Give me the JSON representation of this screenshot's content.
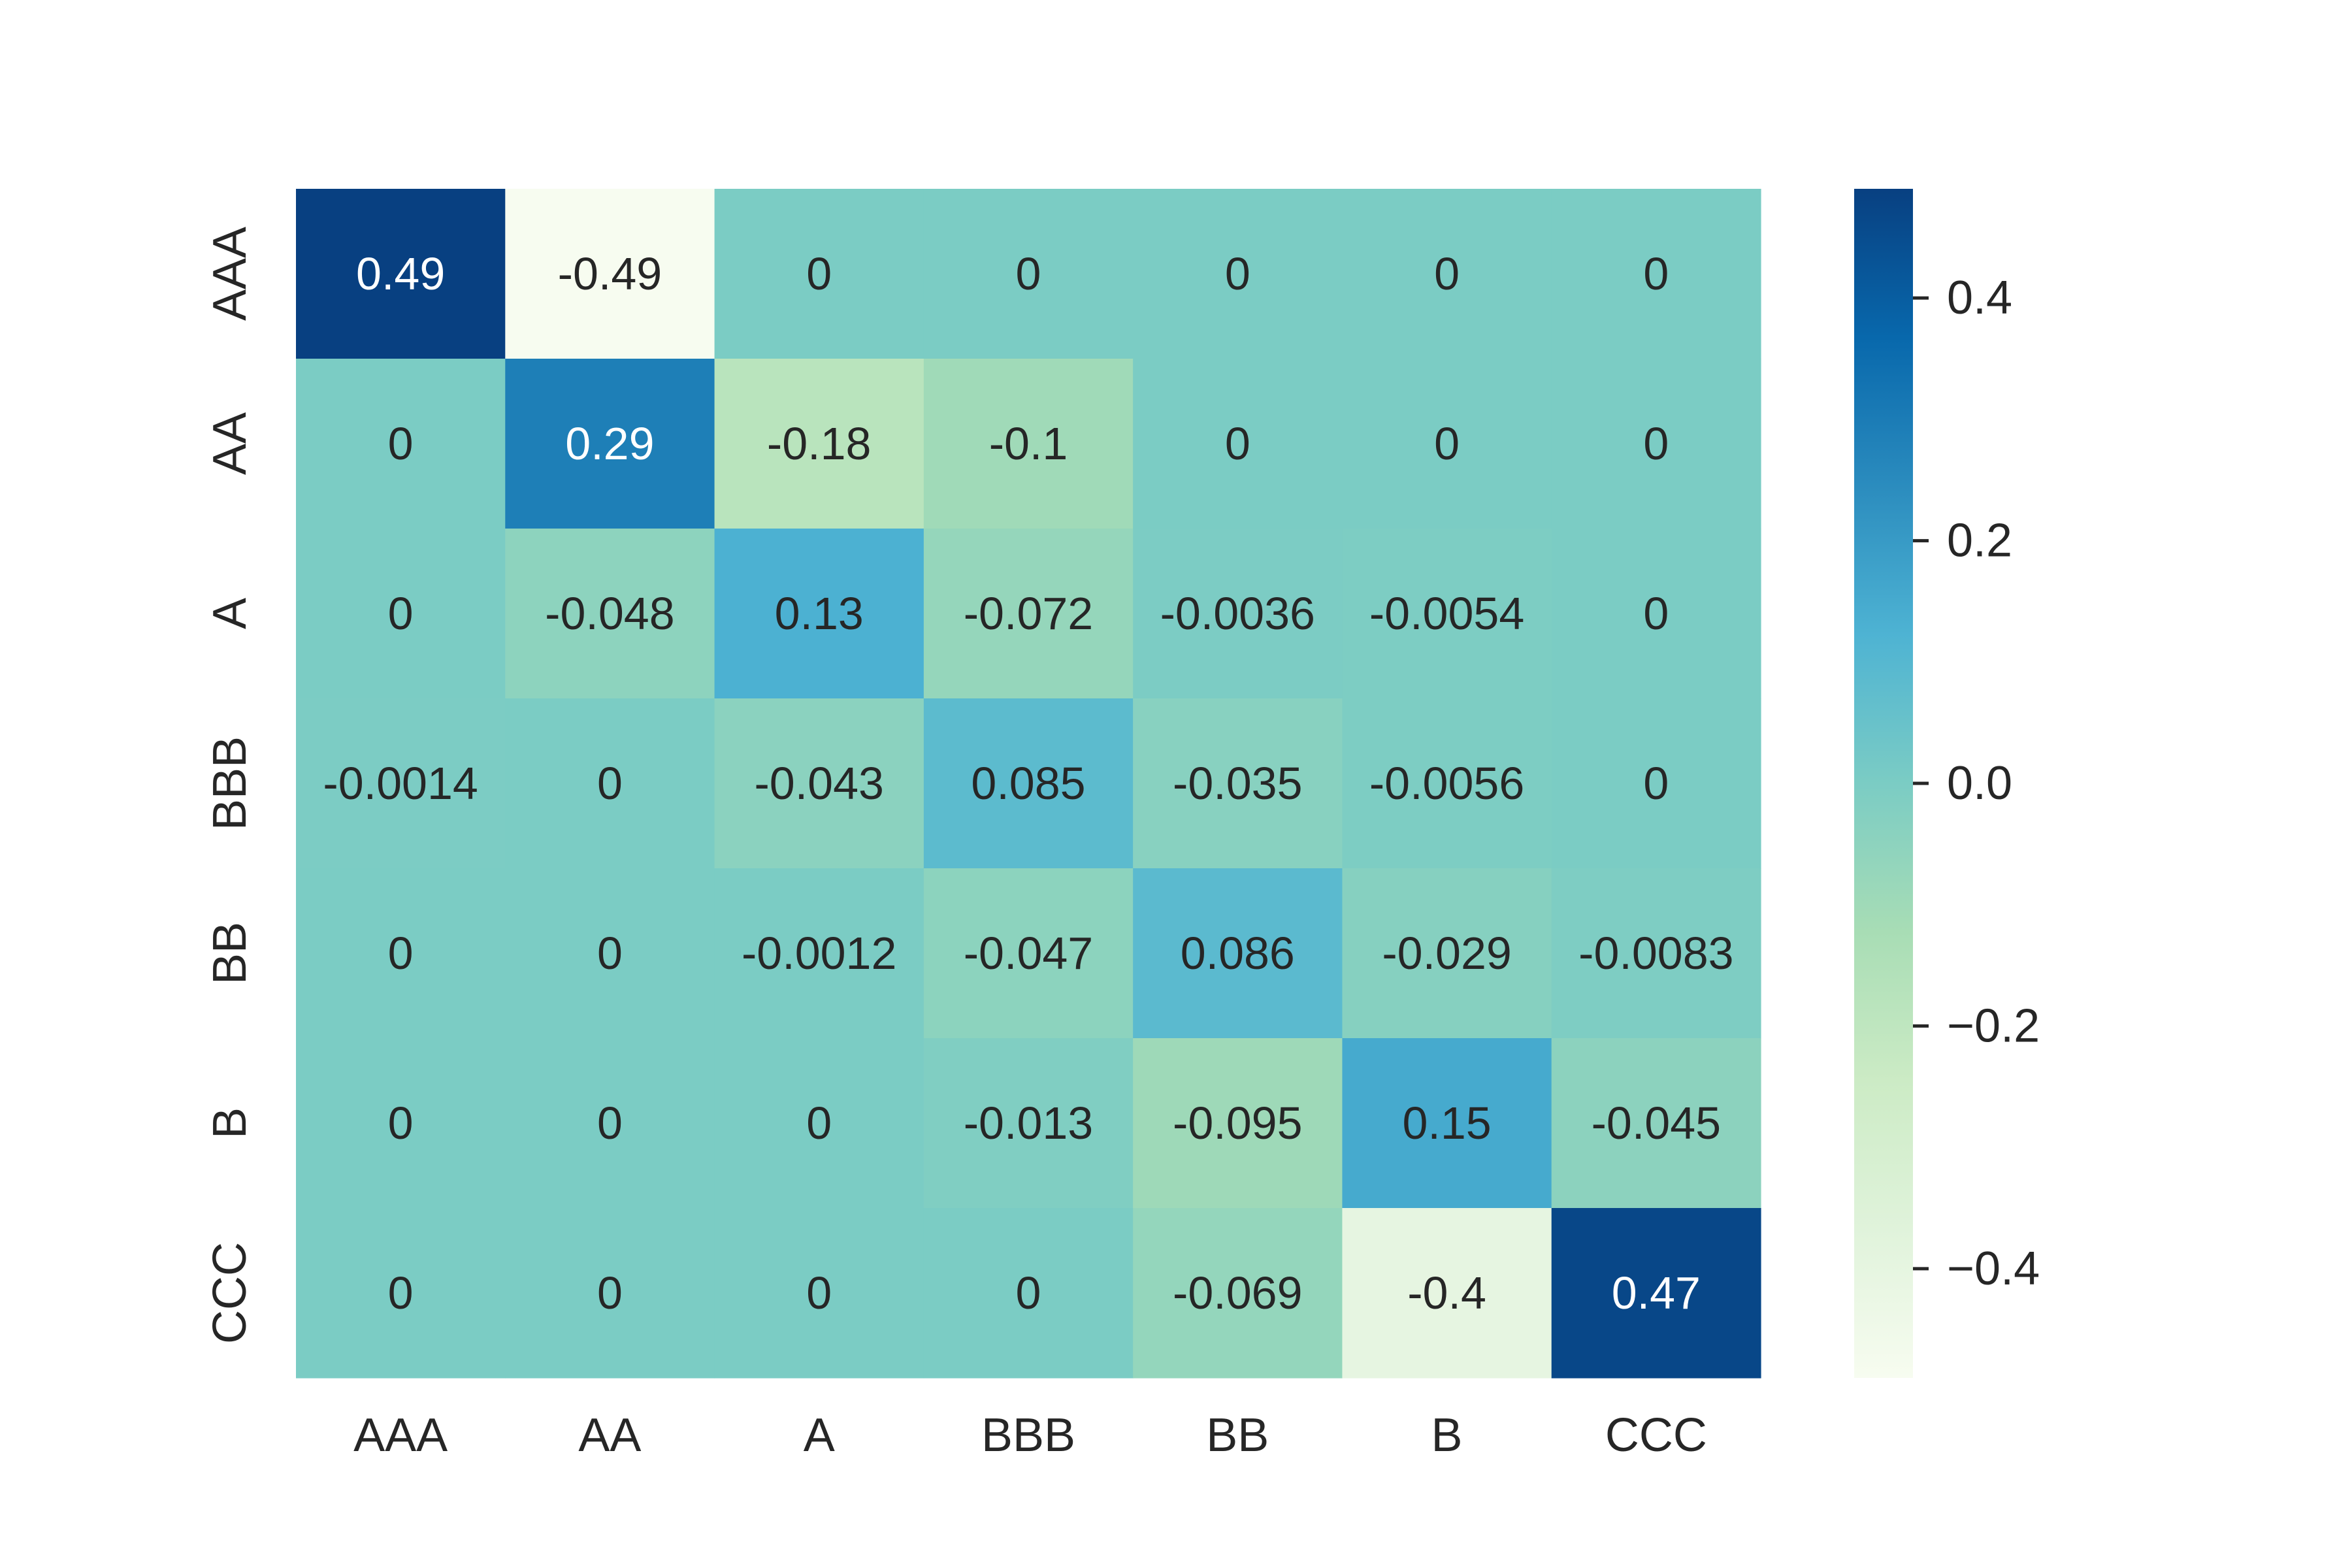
{
  "chart_data": {
    "type": "heatmap",
    "title": "",
    "xlabel": "",
    "ylabel": "",
    "x_categories": [
      "AAA",
      "AA",
      "A",
      "BBB",
      "BB",
      "B",
      "CCC"
    ],
    "y_categories": [
      "AAA",
      "AA",
      "A",
      "BBB",
      "BB",
      "B",
      "CCC"
    ],
    "values": [
      [
        0.49,
        -0.49,
        0,
        0,
        0,
        0,
        0
      ],
      [
        0,
        0.29,
        -0.18,
        -0.1,
        0,
        0,
        0
      ],
      [
        0,
        -0.048,
        0.13,
        -0.072,
        -0.0036,
        -0.0054,
        0
      ],
      [
        -0.0014,
        0,
        -0.043,
        0.085,
        -0.035,
        -0.0056,
        0
      ],
      [
        0,
        0,
        -0.0012,
        -0.047,
        0.086,
        -0.029,
        -0.0083
      ],
      [
        0,
        0,
        0,
        -0.013,
        -0.095,
        0.15,
        -0.045
      ],
      [
        0,
        0,
        0,
        0,
        -0.069,
        -0.4,
        0.47
      ]
    ],
    "annotations": [
      [
        "0.49",
        "-0.49",
        "0",
        "0",
        "0",
        "0",
        "0"
      ],
      [
        "0",
        "0.29",
        "-0.18",
        "-0.1",
        "0",
        "0",
        "0"
      ],
      [
        "0",
        "-0.048",
        "0.13",
        "-0.072",
        "-0.0036",
        "-0.0054",
        "0"
      ],
      [
        "-0.0014",
        "0",
        "-0.043",
        "0.085",
        "-0.035",
        "-0.0056",
        "0"
      ],
      [
        "0",
        "0",
        "-0.0012",
        "-0.047",
        "0.086",
        "-0.029",
        "-0.0083"
      ],
      [
        "0",
        "0",
        "0",
        "-0.013",
        "-0.095",
        "0.15",
        "-0.045"
      ],
      [
        "0",
        "0",
        "0",
        "0",
        "-0.069",
        "-0.4",
        "0.47"
      ]
    ],
    "colormap": "GnBu",
    "colormap_stops": [
      "#f7fcf0",
      "#e0f3db",
      "#ccebc5",
      "#a8ddb5",
      "#7bccc4",
      "#4eb3d3",
      "#2b8cbe",
      "#0868ac",
      "#084081"
    ],
    "vmin": -0.49,
    "vmax": 0.49,
    "colorbar": {
      "ticks": [
        0.4,
        0.2,
        0.0,
        -0.2,
        -0.4
      ],
      "tick_labels": [
        "0.4",
        "0.2",
        "0.0",
        "−0.2",
        "−0.4"
      ]
    },
    "text_colors": {
      "dark": "#262626",
      "light": "#ffffff"
    },
    "grid": false,
    "legend": "colorbar-right"
  }
}
